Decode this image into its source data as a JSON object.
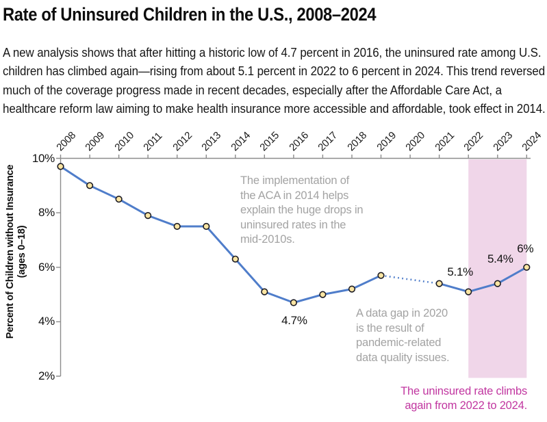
{
  "header": {
    "title": "Rate of Uninsured Children in the U.S., 2008–2024",
    "description": "A new analysis shows that after hitting a historic low of 4.7 percent in 2016, the uninsured rate among U.S. children has climbed again—rising from about 5.1 percent in 2022 to 6 percent in 2024. This trend reversed much of the coverage progress made in recent decades, especially after the Affordable Care Act, a healthcare reform law aiming to make health insurance more accessible and affordable, took effect in 2014."
  },
  "chart_data": {
    "type": "line",
    "title": "Rate of Uninsured Children in the U.S., 2008–2024",
    "ylabel_line1": "Percent of Children without Insurance",
    "ylabel_line2": "(ages 0–18)",
    "x": [
      2008,
      2009,
      2010,
      2011,
      2012,
      2013,
      2014,
      2015,
      2016,
      2017,
      2018,
      2019,
      2020,
      2021,
      2022,
      2023,
      2024
    ],
    "values": [
      9.7,
      9.0,
      8.5,
      7.9,
      7.5,
      7.5,
      6.3,
      5.1,
      4.7,
      5.0,
      5.2,
      5.7,
      null,
      5.4,
      5.1,
      5.4,
      6.0
    ],
    "ylim": [
      2,
      10
    ],
    "yticks": [
      {
        "label": "10%",
        "value": 10
      },
      {
        "label": "8%",
        "value": 8
      },
      {
        "label": "6%",
        "value": 6
      },
      {
        "label": "4%",
        "value": 4
      },
      {
        "label": "2%",
        "value": 2
      }
    ],
    "gap": {
      "start": 2019,
      "end": 2021,
      "missing_year": 2020
    },
    "highlight_region": {
      "from": 2022,
      "to": 2024
    },
    "point_labels": [
      {
        "year": 2016,
        "label": "4.7%"
      },
      {
        "year": 2022,
        "label": "5.1%"
      },
      {
        "year": 2023,
        "label": "5.4%"
      },
      {
        "year": 2024,
        "label": "6%"
      }
    ],
    "annotations": {
      "aca": {
        "text": "The implementation of\nthe ACA in 2014 helps\nexplain the huge drops in\nuninsured rates in the\nmid-2010s."
      },
      "gap": {
        "text": "A data gap in 2020\nis the result of\npandemic-related\ndata quality issues."
      },
      "climb": {
        "text": "The uninsured rate climbs\nagain from 2022 to 2024."
      }
    },
    "legend": "none",
    "grid": "off",
    "colors": {
      "line": "#4f7dca",
      "marker_fill": "#fbe5a3",
      "marker_stroke": "#1b1b24",
      "highlight": "#f0d6e9",
      "axis": "#8c8c8c",
      "annotation_gray": "#a3a3a3",
      "annotation_magenta": "#c136a0",
      "text": "#111111"
    }
  }
}
